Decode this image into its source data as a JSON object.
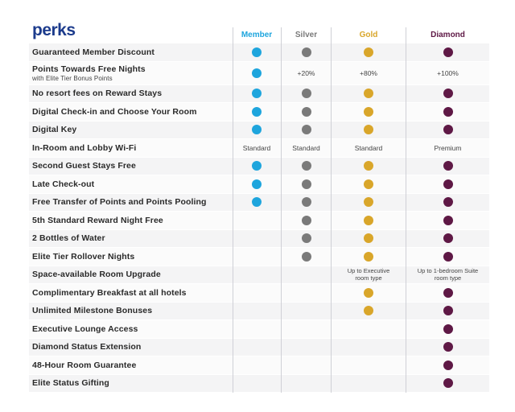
{
  "brand": {
    "title": "perks"
  },
  "tiers": [
    {
      "name": "Member",
      "color": "#1ea5dd"
    },
    {
      "name": "Silver",
      "color": "#7a7a7a"
    },
    {
      "name": "Gold",
      "color": "#d9a62a"
    },
    {
      "name": "Diamond",
      "color": "#5e1845"
    }
  ],
  "rows": [
    {
      "label": "Guaranteed Member Discount",
      "cells": [
        "dot",
        "dot",
        "dot",
        "dot"
      ]
    },
    {
      "label": "Points Towards Free Nights",
      "sub": "with Elite Tier Bonus Points",
      "cells": [
        "dot",
        "+20%",
        "+80%",
        "+100%"
      ]
    },
    {
      "label": "No resort fees on Reward Stays",
      "cells": [
        "dot",
        "dot",
        "dot",
        "dot"
      ]
    },
    {
      "label": "Digital Check-in and Choose Your Room",
      "cells": [
        "dot",
        "dot",
        "dot",
        "dot"
      ]
    },
    {
      "label": "Digital Key",
      "cells": [
        "dot",
        "dot",
        "dot",
        "dot"
      ]
    },
    {
      "label": "In-Room and Lobby Wi-Fi",
      "cells": [
        "Standard",
        "Standard",
        "Standard",
        "Premium"
      ]
    },
    {
      "label": "Second Guest Stays Free",
      "cells": [
        "dot",
        "dot",
        "dot",
        "dot"
      ]
    },
    {
      "label": "Late Check-out",
      "cells": [
        "dot",
        "dot",
        "dot",
        "dot"
      ]
    },
    {
      "label": "Free Transfer of Points and Points Pooling",
      "cells": [
        "dot",
        "dot",
        "dot",
        "dot"
      ]
    },
    {
      "label": "5th Standard Reward Night Free",
      "cells": [
        "",
        "dot",
        "dot",
        "dot"
      ]
    },
    {
      "label": "2 Bottles of Water",
      "cells": [
        "",
        "dot",
        "dot",
        "dot"
      ]
    },
    {
      "label": "Elite Tier Rollover Nights",
      "cells": [
        "",
        "dot",
        "dot",
        "dot"
      ]
    },
    {
      "label": "Space-available Room Upgrade",
      "cells": [
        "",
        "",
        "Up to Executive room type",
        "Up to 1-bedroom Suite room type"
      ]
    },
    {
      "label": "Complimentary Breakfast at all hotels",
      "cells": [
        "",
        "",
        "dot",
        "dot"
      ]
    },
    {
      "label": "Unlimited Milestone Bonuses",
      "cells": [
        "",
        "",
        "dot",
        "dot"
      ]
    },
    {
      "label": "Executive Lounge Access",
      "cells": [
        "",
        "",
        "",
        "dot"
      ]
    },
    {
      "label": "Diamond Status Extension",
      "cells": [
        "",
        "",
        "",
        "dot"
      ]
    },
    {
      "label": "48-Hour Room Guarantee",
      "cells": [
        "",
        "",
        "",
        "dot"
      ]
    },
    {
      "label": "Elite Status Gifting",
      "cells": [
        "",
        "",
        "",
        "dot"
      ]
    }
  ]
}
